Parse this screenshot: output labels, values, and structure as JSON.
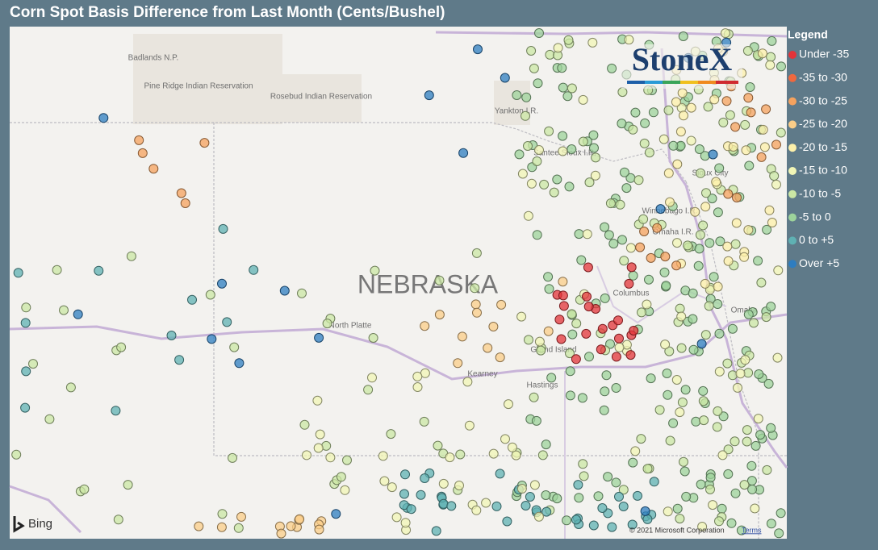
{
  "header": {
    "title": "Corn Spot Basis Difference from Last Month (Cents/Bushel)"
  },
  "legend": {
    "title": "Legend",
    "items": [
      {
        "label": "Under -35",
        "color": "#e3343a"
      },
      {
        "label": "-35 to -30",
        "color": "#f0683e"
      },
      {
        "label": "-30 to -25",
        "color": "#f5a25e"
      },
      {
        "label": "-25 to -20",
        "color": "#fbcd88"
      },
      {
        "label": "-20 to -15",
        "color": "#fdf0aa"
      },
      {
        "label": "-15 to -10",
        "color": "#f1f6b6"
      },
      {
        "label": "-10 to -5",
        "color": "#cbe7a4"
      },
      {
        "label": "-5 to 0",
        "color": "#9dd39b"
      },
      {
        "label": "0 to +5",
        "color": "#5fb1b3"
      },
      {
        "label": "Over +5",
        "color": "#2e7dc0"
      }
    ]
  },
  "map": {
    "labels": [
      "Badlands N.P.",
      "Pine Ridge Indian Reservation",
      "Rosebud Indian Reservation",
      "NEBRASKA",
      "North Platte",
      "Kearney",
      "Grand Island",
      "Hastings",
      "Columbus",
      "Omaha",
      "Sioux City",
      "Yankton I.R.",
      "Santee Sioux I.R.",
      "Winnebago I.R.",
      "Omaha I.R."
    ],
    "logo": "StoneX",
    "provider": "Bing",
    "copyright": "© 2021 Microsoft Corporation",
    "terms": "Terms"
  }
}
